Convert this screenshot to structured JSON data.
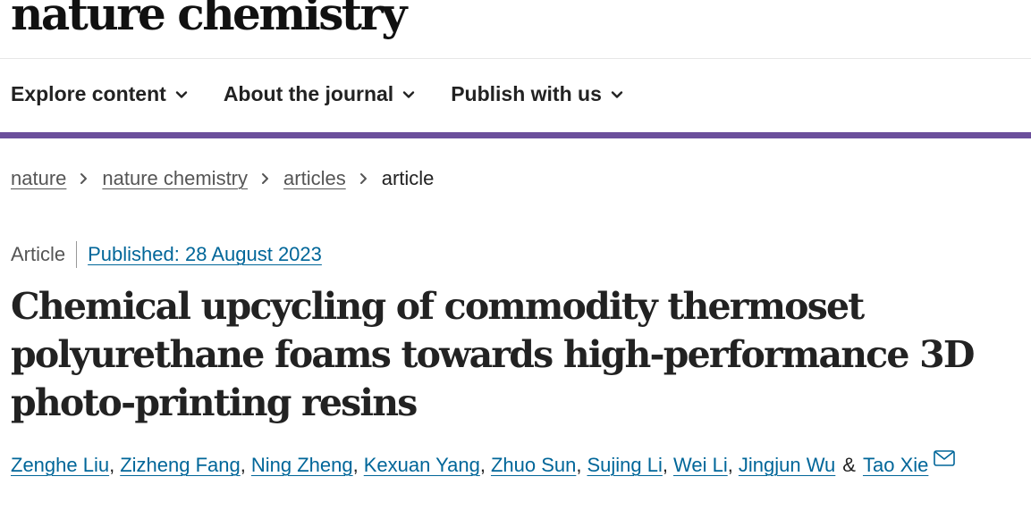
{
  "site": {
    "brand": "nature chemistry"
  },
  "nav": {
    "items": [
      {
        "label": "Explore content"
      },
      {
        "label": "About the journal"
      },
      {
        "label": "Publish with us"
      }
    ]
  },
  "breadcrumb": {
    "items": [
      {
        "label": "nature"
      },
      {
        "label": "nature chemistry"
      },
      {
        "label": "articles"
      }
    ],
    "current": "article"
  },
  "article": {
    "type": "Article",
    "published": "Published: 28 August 2023",
    "title": "Chemical upcycling of commodity thermoset polyurethane foams towards high-performance 3D photo-printing resins",
    "authors": [
      "Zenghe Liu",
      "Zizheng Fang",
      "Ning Zheng",
      "Kexuan Yang",
      "Zhuo Sun",
      "Sujing Li",
      "Wei Li",
      "Jingjun Wu",
      "Tao Xie"
    ],
    "author_separator": ", ",
    "author_last_separator": " & "
  },
  "colors": {
    "accent_bar": "#6b4f9b",
    "link": "#006699"
  }
}
